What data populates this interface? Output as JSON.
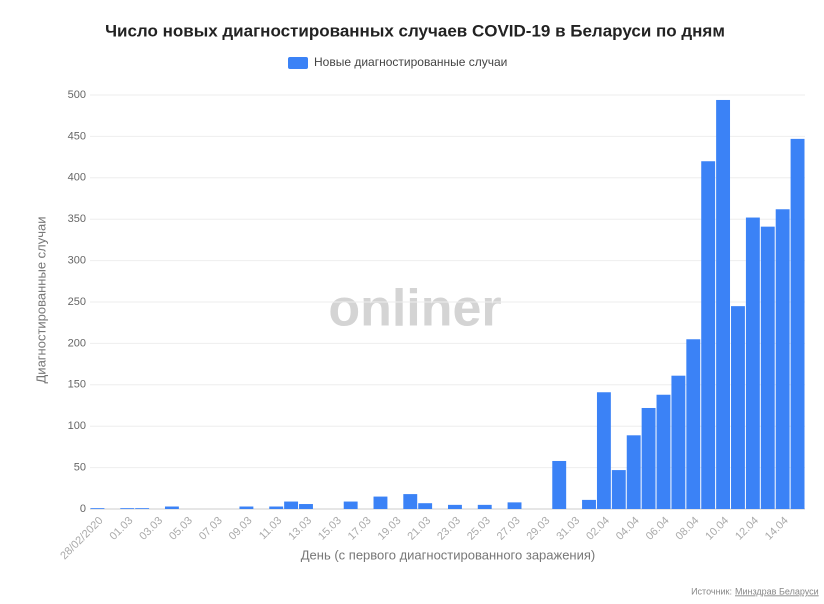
{
  "chart_data": {
    "type": "bar",
    "title": "Число новых диагностированных случаев COVID-19 в Беларуси по дням",
    "x_label": "День (с первого диагностированного заражения)",
    "y_label": "Диагностированные случаи",
    "watermark": "onliner",
    "source_label": "Источник:",
    "source_link": "Минздрав Беларуси",
    "series": [
      {
        "name": "Новые диагностированные случаи",
        "color": "#3b82f6",
        "values": [
          1,
          0,
          1,
          1,
          0,
          3,
          0,
          0,
          0,
          0,
          3,
          0,
          3,
          9,
          6,
          0,
          0,
          9,
          0,
          15,
          0,
          18,
          7,
          0,
          5,
          0,
          5,
          0,
          8,
          0,
          0,
          58,
          0,
          11,
          141,
          47,
          89,
          122,
          138,
          161,
          205,
          420,
          494,
          245,
          352,
          341,
          362,
          447
        ]
      }
    ],
    "categories": [
      "28/02/2020",
      null,
      "01.03",
      null,
      "03.03",
      null,
      "05.03",
      null,
      "07.03",
      null,
      "09.03",
      null,
      "11.03",
      null,
      "13.03",
      null,
      "15.03",
      null,
      "17.03",
      null,
      "19.03",
      null,
      "21.03",
      null,
      "23.03",
      null,
      "25.03",
      null,
      "27.03",
      null,
      "29.03",
      null,
      "31.03",
      null,
      "02.04",
      null,
      "04.04",
      null,
      "06.04",
      null,
      "08.04",
      null,
      "10.04",
      null,
      "12.04",
      null,
      "14.04",
      null
    ],
    "ylim": [
      0,
      500
    ],
    "yticks": [
      0,
      50,
      100,
      150,
      200,
      250,
      300,
      350,
      400,
      450,
      500
    ],
    "grid": true
  }
}
